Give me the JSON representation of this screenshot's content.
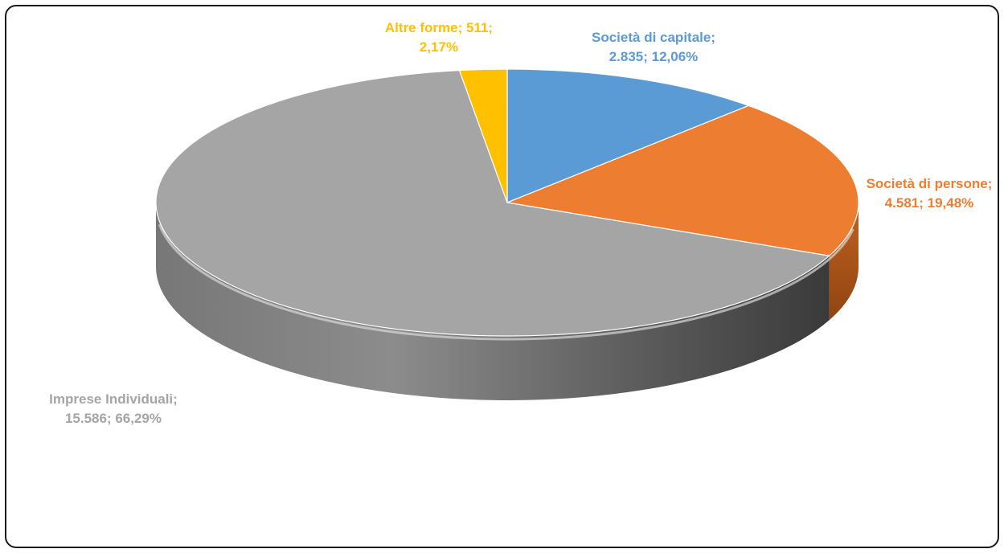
{
  "chart_data": {
    "type": "pie",
    "style": "3d",
    "title": "",
    "slices": [
      {
        "name": "Società di capitale",
        "value": 2835,
        "percent": 12.06,
        "color": "#5b9bd5",
        "label_line1": "Società di capitale;",
        "label_line2": "2.835; 12,06%"
      },
      {
        "name": "Società di persone",
        "value": 4581,
        "percent": 19.48,
        "color": "#ed7d31",
        "label_line1": "Società di persone;",
        "label_line2": "4.581; 19,48%"
      },
      {
        "name": "Imprese Individuali",
        "value": 15586,
        "percent": 66.29,
        "color": "#a5a5a5",
        "label_line1": "Imprese Individuali;",
        "label_line2": "15.586; 66,29%"
      },
      {
        "name": "Altre forme",
        "value": 511,
        "percent": 2.17,
        "color": "#ffc000",
        "label_line1": "Altre forme; 511;",
        "label_line2": "2,17%"
      }
    ]
  }
}
